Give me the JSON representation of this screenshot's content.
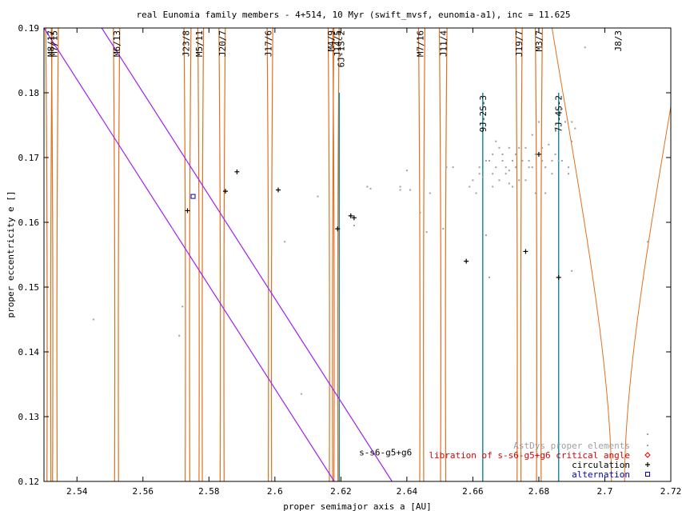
{
  "chart_data": {
    "type": "scatter",
    "title": "real Eunomia family members - 4+514, 10 Myr (swift_mvsf, eunomia-a1), inc = 11.625",
    "xlabel": "proper semimajor axis a [AU]",
    "ylabel": "proper eccentricity e []",
    "xlim": [
      2.53,
      2.72
    ],
    "ylim": [
      0.12,
      0.19
    ],
    "xticks": [
      "2.54",
      "2.56",
      "2.58",
      "2.6",
      "2.62",
      "2.64",
      "2.66",
      "2.68",
      "2.7",
      "2.72"
    ],
    "yticks": [
      "0.12",
      "0.13",
      "0.14",
      "0.15",
      "0.16",
      "0.17",
      "0.18",
      "0.19"
    ],
    "grid": false,
    "legend_position": "bottom-right",
    "colors": {
      "resonance": "#e07020",
      "secular": "#a020f0",
      "teal": "#1e8c9c",
      "proper": "#a0a0a0",
      "libration": "#e00000",
      "circulation": "#000000",
      "alternation": "#0000c0"
    },
    "legend": [
      {
        "label": "AstDys proper elements",
        "color": "#a0a0a0",
        "marker": "dot"
      },
      {
        "label": "libration of s-s6-g5+g6 critical angle",
        "color": "#e00000",
        "marker": "diamond"
      },
      {
        "label": "circulation",
        "color": "#000000",
        "marker": "plus"
      },
      {
        "label": "alternation",
        "color": "#0000c0",
        "marker": "square"
      }
    ],
    "resonance_labels": [
      {
        "label": "M8/17",
        "a": 2.532,
        "line_y": 0.19
      },
      {
        "label": "M7/15",
        "a": 2.533,
        "line_y": 0.19
      },
      {
        "label": "M6/13",
        "a": 2.552,
        "line_y": 0.19
      },
      {
        "label": "J23/8",
        "a": 2.573,
        "line_y": 0.19
      },
      {
        "label": "M5/11",
        "a": 2.577,
        "line_y": 0.19
      },
      {
        "label": "J20/7",
        "a": 2.584,
        "line_y": 0.19
      },
      {
        "label": "J17/6",
        "a": 2.598,
        "line_y": 0.19
      },
      {
        "label": "M4/9",
        "a": 2.617,
        "line_y": 0.19
      },
      {
        "label": "J14/5",
        "a": 2.619,
        "line_y": 0.19
      },
      {
        "label": "6J-1S-2",
        "a": 2.62,
        "line_y": 0.19
      },
      {
        "label": "M7/16",
        "a": 2.644,
        "line_y": 0.19
      },
      {
        "label": "J11/4",
        "a": 2.651,
        "line_y": 0.19
      },
      {
        "label": "9J-2S-3",
        "a": 2.663,
        "line_y": 0.18
      },
      {
        "label": "J19/7",
        "a": 2.674,
        "line_y": 0.19
      },
      {
        "label": "M3/7",
        "a": 2.68,
        "line_y": 0.19
      },
      {
        "label": "7J-4S-2",
        "a": 2.686,
        "line_y": 0.18
      },
      {
        "label": "J8/3",
        "a": 2.704,
        "line_y": 0.19
      }
    ],
    "resonance_lines": [
      {
        "a": 2.5315,
        "w": 0.0012,
        "type": "vertical"
      },
      {
        "a": 2.5333,
        "w": 0.0014,
        "type": "vertical"
      },
      {
        "a": 2.552,
        "w": 0.0012,
        "type": "vertical"
      },
      {
        "a": 2.5735,
        "w": 0.0014,
        "type": "vertical"
      },
      {
        "a": 2.5775,
        "w": 0.001,
        "type": "vertical"
      },
      {
        "a": 2.584,
        "w": 0.0012,
        "type": "vertical"
      },
      {
        "a": 2.5985,
        "w": 0.001,
        "type": "vertical"
      },
      {
        "a": 2.617,
        "w": 0.001,
        "type": "vertical"
      },
      {
        "a": 2.6185,
        "w": 0.0012,
        "type": "vertical"
      },
      {
        "a": 2.6445,
        "w": 0.0012,
        "type": "vertical"
      },
      {
        "a": 2.651,
        "w": 0.0016,
        "type": "vertical"
      },
      {
        "a": 2.674,
        "w": 0.0012,
        "type": "vertical"
      },
      {
        "a": 2.68,
        "w": 0.0014,
        "type": "vertical"
      },
      {
        "a": 2.704,
        "w": 0.004,
        "type": "vshape"
      }
    ],
    "teal_lines": [
      {
        "a": 2.6195,
        "e_top": 0.18
      },
      {
        "a": 2.663,
        "e_top": 0.18
      },
      {
        "a": 2.686,
        "e_top": 0.18
      }
    ],
    "secular_lines": [
      {
        "points": [
          [
            2.53,
            0.19
          ],
          [
            2.618,
            0.12
          ]
        ]
      },
      {
        "points": [
          [
            2.5475,
            0.19
          ],
          [
            2.6355,
            0.12
          ]
        ]
      }
    ],
    "secular_label": {
      "text": "s-s6-g5+g6",
      "a": 2.6255,
      "e": 0.1245
    },
    "series": [
      {
        "name": "AstDys proper elements",
        "marker": "dot",
        "points": [
          [
            2.545,
            0.145
          ],
          [
            2.569,
            0.159
          ],
          [
            2.571,
            0.1425
          ],
          [
            2.572,
            0.147
          ],
          [
            2.603,
            0.157
          ],
          [
            2.608,
            0.1335
          ],
          [
            2.613,
            0.164
          ],
          [
            2.624,
            0.1595
          ],
          [
            2.628,
            0.1655
          ],
          [
            2.629,
            0.1652
          ],
          [
            2.638,
            0.1655
          ],
          [
            2.638,
            0.165
          ],
          [
            2.64,
            0.168
          ],
          [
            2.641,
            0.165
          ],
          [
            2.644,
            0.1615
          ],
          [
            2.646,
            0.1585
          ],
          [
            2.647,
            0.1645
          ],
          [
            2.651,
            0.159
          ],
          [
            2.652,
            0.1685
          ],
          [
            2.654,
            0.1685
          ],
          [
            2.659,
            0.1655
          ],
          [
            2.66,
            0.1665
          ],
          [
            2.661,
            0.1645
          ],
          [
            2.662,
            0.1675
          ],
          [
            2.662,
            0.1685
          ],
          [
            2.663,
            0.167
          ],
          [
            2.664,
            0.1695
          ],
          [
            2.664,
            0.158
          ],
          [
            2.665,
            0.1695
          ],
          [
            2.665,
            0.1515
          ],
          [
            2.666,
            0.1705
          ],
          [
            2.666,
            0.1675
          ],
          [
            2.666,
            0.1655
          ],
          [
            2.667,
            0.1725
          ],
          [
            2.667,
            0.1685
          ],
          [
            2.668,
            0.1715
          ],
          [
            2.668,
            0.1665
          ],
          [
            2.669,
            0.1695
          ],
          [
            2.669,
            0.1705
          ],
          [
            2.67,
            0.1685
          ],
          [
            2.67,
            0.1675
          ],
          [
            2.671,
            0.1715
          ],
          [
            2.671,
            0.168
          ],
          [
            2.671,
            0.166
          ],
          [
            2.672,
            0.1695
          ],
          [
            2.672,
            0.1655
          ],
          [
            2.673,
            0.1685
          ],
          [
            2.673,
            0.1705
          ],
          [
            2.674,
            0.1665
          ],
          [
            2.674,
            0.1715
          ],
          [
            2.675,
            0.1695
          ],
          [
            2.676,
            0.1715
          ],
          [
            2.676,
            0.1665
          ],
          [
            2.677,
            0.1685
          ],
          [
            2.677,
            0.1695
          ],
          [
            2.678,
            0.1735
          ],
          [
            2.678,
            0.1685
          ],
          [
            2.679,
            0.1645
          ],
          [
            2.679,
            0.1705
          ],
          [
            2.68,
            0.1755
          ],
          [
            2.681,
            0.1715
          ],
          [
            2.681,
            0.1695
          ],
          [
            2.682,
            0.1685
          ],
          [
            2.682,
            0.1645
          ],
          [
            2.683,
            0.172
          ],
          [
            2.684,
            0.1695
          ],
          [
            2.684,
            0.1675
          ],
          [
            2.685,
            0.1745
          ],
          [
            2.685,
            0.1705
          ],
          [
            2.686,
            0.1695
          ],
          [
            2.687,
            0.1775
          ],
          [
            2.687,
            0.1695
          ],
          [
            2.688,
            0.1755
          ],
          [
            2.689,
            0.1685
          ],
          [
            2.689,
            0.1675
          ],
          [
            2.69,
            0.1725
          ],
          [
            2.69,
            0.1525
          ],
          [
            2.691,
            0.1745
          ],
          [
            2.69,
            0.1755
          ],
          [
            2.694,
            0.187
          ],
          [
            2.713,
            0.157
          ]
        ]
      },
      {
        "name": "libration of s-s6-g5+g6 critical angle",
        "marker": "diamond",
        "points": []
      },
      {
        "name": "circulation",
        "marker": "plus",
        "points": [
          [
            2.5735,
            0.1618
          ],
          [
            2.585,
            0.1648
          ],
          [
            2.5885,
            0.1678
          ],
          [
            2.601,
            0.165
          ],
          [
            2.619,
            0.159
          ],
          [
            2.623,
            0.161
          ],
          [
            2.624,
            0.1607
          ],
          [
            2.658,
            0.154
          ],
          [
            2.676,
            0.1555
          ],
          [
            2.68,
            0.1705
          ],
          [
            2.686,
            0.1515
          ]
        ]
      },
      {
        "name": "alternation",
        "marker": "square",
        "points": [
          [
            2.5752,
            0.164
          ]
        ]
      }
    ]
  }
}
